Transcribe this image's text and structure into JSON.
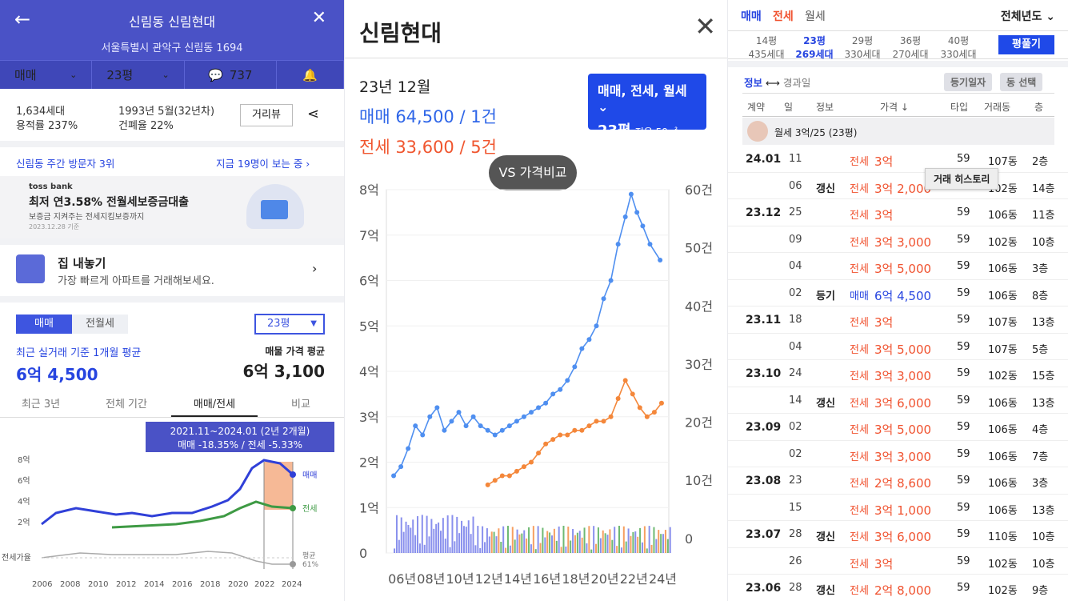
{
  "p1": {
    "header": {
      "title": "신림동 신림현대",
      "address": "서울특별시 관악구 신림동 1694"
    },
    "nav": {
      "trade": "매매",
      "size": "23평",
      "comments": "737"
    },
    "info": {
      "units": "1,634세대",
      "far": "용적률 237%",
      "built": "1993년 5월(32년차)",
      "bcr": "건폐율 22%",
      "view_btn": "거리뷰"
    },
    "visit": {
      "rank": "신림동 주간 방문자 3위",
      "now": "지금 19명이 보는 중"
    },
    "ad": {
      "brand": "toss bank",
      "title": "최저 연3.58% 전월세보증금대출",
      "sub": "보증금 지켜주는 전세지킴보증까지",
      "date": "2023.12.28 기준"
    },
    "sell": {
      "title": "집 내놓기",
      "sub": "가장 빠르게 아파트를 거래해보세요."
    },
    "tabs": {
      "sale": "매매",
      "rent": "전월세",
      "size": "23평"
    },
    "avg": {
      "label": "최근 실거래 기준 1개월 평균",
      "value": "6억 4,500",
      "ask_label": "매물 가격 평균",
      "ask_value": "6억 3,100"
    },
    "period_tabs": [
      "최근 3년",
      "전체 기간",
      "매매/전세",
      "비교"
    ],
    "tooltip": {
      "line1": "2021.11~2024.01 (2년 2개월)",
      "line2": "매매 -18.35%  /  전세 -5.33%"
    },
    "chart": {
      "y_labels": [
        "8억",
        "6억",
        "4억",
        "2억"
      ],
      "x_labels": [
        "2006",
        "2008",
        "2010",
        "2012",
        "2014",
        "2016",
        "2018",
        "2020",
        "2022",
        "2024"
      ],
      "legend_sale": "매매",
      "legend_jeonse": "전세",
      "ratio_label": "전세가율",
      "ratio_avg": "평균",
      "ratio_value": "61%"
    }
  },
  "p2": {
    "title": "신림현대",
    "month": "23년 12월",
    "sale": "매매 64,500 / 1건",
    "jeonse": "전세 33,600 / 5건",
    "filter": {
      "line1": "매매, 전세, 월세",
      "line2": "23평",
      "line3": "전용 59㎡"
    },
    "vs_btn": "VS 가격비교"
  },
  "chart_data": {
    "type": "line",
    "y_labels_left": [
      "8억",
      "7억",
      "6억",
      "5억",
      "4억",
      "3억",
      "2억",
      "1억",
      "0"
    ],
    "y_labels_right": [
      "60건",
      "50건",
      "40건",
      "30건",
      "20건",
      "10건",
      "0"
    ],
    "x_labels": [
      "06년",
      "08년",
      "10년",
      "12년",
      "14년",
      "16년",
      "18년",
      "20년",
      "22년",
      "24년"
    ],
    "ylim": [
      0,
      8
    ],
    "series": [
      {
        "name": "매매",
        "color": "#4f8ff0",
        "x": [
          2005.5,
          2006,
          2006.5,
          2007,
          2007.5,
          2008,
          2008.5,
          2009,
          2009.5,
          2010,
          2010.5,
          2011,
          2011.5,
          2012,
          2012.5,
          2013,
          2013.5,
          2014,
          2014.5,
          2015,
          2015.5,
          2016,
          2016.5,
          2017,
          2017.5,
          2018,
          2018.5,
          2019,
          2019.5,
          2020,
          2020.5,
          2021,
          2021.5,
          2021.9,
          2022.3,
          2022.7,
          2023.2,
          2023.9
        ],
        "y": [
          1.7,
          1.9,
          2.3,
          2.8,
          2.6,
          3.0,
          3.2,
          2.7,
          2.9,
          3.1,
          2.8,
          3.0,
          2.8,
          2.7,
          2.6,
          2.7,
          2.8,
          2.9,
          3.0,
          3.1,
          3.2,
          3.3,
          3.5,
          3.6,
          3.8,
          4.1,
          4.5,
          4.7,
          5.0,
          5.6,
          6.0,
          6.8,
          7.4,
          7.9,
          7.5,
          7.2,
          6.8,
          6.45
        ]
      },
      {
        "name": "전세",
        "color": "#f4873a",
        "x": [
          2012,
          2012.5,
          2013,
          2013.5,
          2014,
          2014.5,
          2015,
          2015.5,
          2016,
          2016.5,
          2017,
          2017.5,
          2018,
          2018.5,
          2019,
          2019.5,
          2020,
          2020.5,
          2021,
          2021.5,
          2022,
          2022.5,
          2023,
          2023.5,
          2024
        ],
        "y": [
          1.5,
          1.6,
          1.7,
          1.7,
          1.8,
          1.9,
          2.0,
          2.2,
          2.4,
          2.5,
          2.6,
          2.6,
          2.7,
          2.7,
          2.8,
          2.9,
          2.9,
          3.0,
          3.4,
          3.8,
          3.5,
          3.2,
          3.0,
          3.1,
          3.3
        ]
      }
    ]
  },
  "p3": {
    "top_tabs": [
      "매매",
      "전세",
      "월세"
    ],
    "period": "전체년도",
    "sizes": [
      {
        "p": "14평",
        "u": "435세대"
      },
      {
        "p": "23평",
        "u": "269세대"
      },
      {
        "p": "29평",
        "u": "330세대"
      },
      {
        "p": "36평",
        "u": "270세대"
      },
      {
        "p": "40평",
        "u": "330세대"
      }
    ],
    "plan_btn": "평풀기",
    "sub": {
      "info": "정보",
      "arrow": "⟷",
      "elapsed": "경과일",
      "reg": "등기일자",
      "bldg": "동 선택"
    },
    "headers": [
      "계약",
      "일",
      "정보",
      "가격 ↓",
      "타입",
      "거래동",
      "층"
    ],
    "pinned": "월세 3억/25 (23평)",
    "tooltip": "거래 히스토리",
    "rows": [
      {
        "m": "24.01",
        "d": "11",
        "info": "",
        "kind": "전세",
        "price": "3억",
        "type": "59",
        "dong": "107동",
        "floor": "2층"
      },
      {
        "m": "",
        "d": "06",
        "info": "갱신",
        "kind": "전세",
        "price": "3억 2,000",
        "type": "59",
        "dong": "102동",
        "floor": "14층"
      },
      {
        "m": "23.12",
        "d": "25",
        "info": "",
        "kind": "전세",
        "price": "3억",
        "type": "59",
        "dong": "106동",
        "floor": "11층"
      },
      {
        "m": "",
        "d": "09",
        "info": "",
        "kind": "전세",
        "price": "3억 3,000",
        "type": "59",
        "dong": "102동",
        "floor": "10층"
      },
      {
        "m": "",
        "d": "04",
        "info": "",
        "kind": "전세",
        "price": "3억 5,000",
        "type": "59",
        "dong": "106동",
        "floor": "3층"
      },
      {
        "m": "",
        "d": "02",
        "info": "등기",
        "kind": "매매",
        "price": "6억 4,500",
        "type": "59",
        "dong": "106동",
        "floor": "8층"
      },
      {
        "m": "23.11",
        "d": "18",
        "info": "",
        "kind": "전세",
        "price": "3억",
        "type": "59",
        "dong": "107동",
        "floor": "13층"
      },
      {
        "m": "",
        "d": "04",
        "info": "",
        "kind": "전세",
        "price": "3억 5,000",
        "type": "59",
        "dong": "107동",
        "floor": "5층"
      },
      {
        "m": "23.10",
        "d": "24",
        "info": "",
        "kind": "전세",
        "price": "3억 3,000",
        "type": "59",
        "dong": "102동",
        "floor": "15층"
      },
      {
        "m": "",
        "d": "14",
        "info": "갱신",
        "kind": "전세",
        "price": "3억 6,000",
        "type": "59",
        "dong": "106동",
        "floor": "13층"
      },
      {
        "m": "23.09",
        "d": "02",
        "info": "",
        "kind": "전세",
        "price": "3억 5,000",
        "type": "59",
        "dong": "106동",
        "floor": "4층"
      },
      {
        "m": "",
        "d": "02",
        "info": "",
        "kind": "전세",
        "price": "3억 3,000",
        "type": "59",
        "dong": "106동",
        "floor": "7층"
      },
      {
        "m": "23.08",
        "d": "23",
        "info": "",
        "kind": "전세",
        "price": "2억 8,600",
        "type": "59",
        "dong": "106동",
        "floor": "3층"
      },
      {
        "m": "",
        "d": "15",
        "info": "",
        "kind": "전세",
        "price": "3억 1,000",
        "type": "59",
        "dong": "106동",
        "floor": "13층"
      },
      {
        "m": "23.07",
        "d": "28",
        "info": "갱신",
        "kind": "전세",
        "price": "3억 6,000",
        "type": "59",
        "dong": "110동",
        "floor": "10층"
      },
      {
        "m": "",
        "d": "26",
        "info": "",
        "kind": "전세",
        "price": "3억",
        "type": "59",
        "dong": "102동",
        "floor": "10층"
      },
      {
        "m": "23.06",
        "d": "28",
        "info": "갱신",
        "kind": "전세",
        "price": "2억 8,000",
        "type": "59",
        "dong": "102동",
        "floor": "9층"
      }
    ]
  }
}
